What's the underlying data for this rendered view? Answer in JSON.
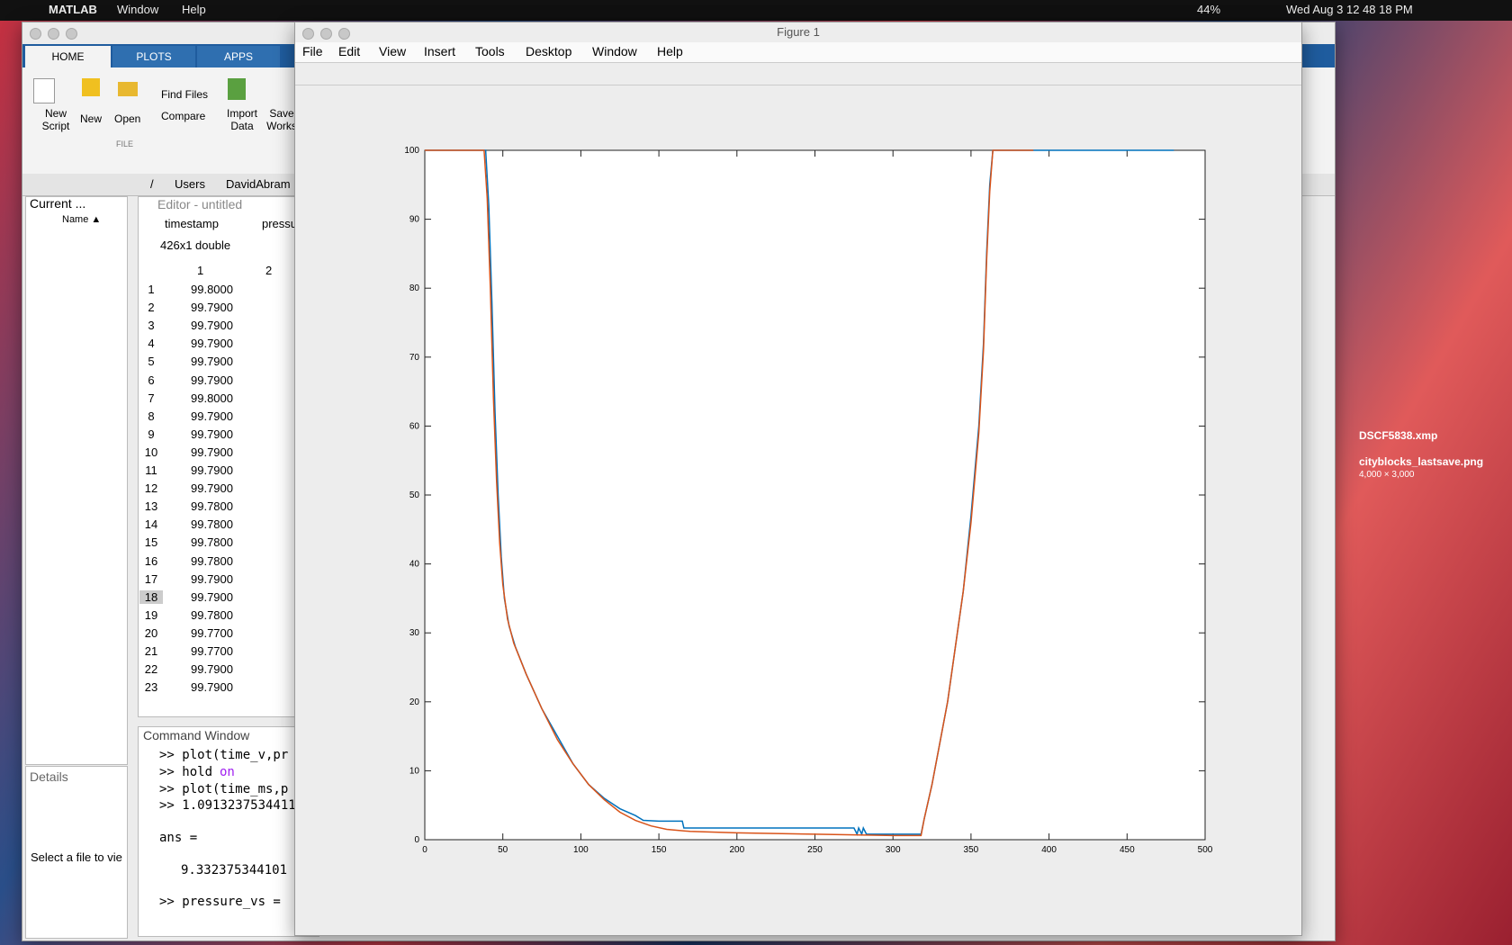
{
  "menubar": {
    "app": "MATLAB",
    "menus": [
      "Window",
      "Help"
    ],
    "battery": "44%",
    "clock": "Wed Aug 3  12 48 18 PM"
  },
  "matlab": {
    "tabs": [
      "HOME",
      "PLOTS",
      "APPS"
    ],
    "buttons": {
      "new_script": "New Script",
      "new": "New",
      "open": "Open",
      "find_files": "Find Files",
      "compare": "Compare",
      "import_data": "Import Data",
      "save_workspace": "Save Works"
    },
    "section": "FILE",
    "path": [
      "/",
      "Users",
      "DavidAbram"
    ],
    "current_folder": {
      "title": "Current ...",
      "column": "Name ▲"
    },
    "details": {
      "title": "Details",
      "message": "Select a file to vie"
    },
    "editor": {
      "title": "Editor - untitled",
      "tabs": [
        "timestamp",
        "pressu"
      ]
    },
    "variable": {
      "size": "426x1 double",
      "columns": [
        "1",
        "2"
      ],
      "rows": [
        [
          "1",
          "99.8000"
        ],
        [
          "2",
          "99.7900"
        ],
        [
          "3",
          "99.7900"
        ],
        [
          "4",
          "99.7900"
        ],
        [
          "5",
          "99.7900"
        ],
        [
          "6",
          "99.7900"
        ],
        [
          "7",
          "99.8000"
        ],
        [
          "8",
          "99.7900"
        ],
        [
          "9",
          "99.7900"
        ],
        [
          "10",
          "99.7900"
        ],
        [
          "11",
          "99.7900"
        ],
        [
          "12",
          "99.7900"
        ],
        [
          "13",
          "99.7800"
        ],
        [
          "14",
          "99.7800"
        ],
        [
          "15",
          "99.7800"
        ],
        [
          "16",
          "99.7800"
        ],
        [
          "17",
          "99.7900"
        ],
        [
          "18",
          "99.7900"
        ],
        [
          "19",
          "99.7800"
        ],
        [
          "20",
          "99.7700"
        ],
        [
          "21",
          "99.7700"
        ],
        [
          "22",
          "99.7900"
        ],
        [
          "23",
          "99.7900"
        ]
      ]
    },
    "command_window": {
      "title": "Command Window",
      "lines": [
        ">> plot(time_v,pr",
        ">> hold",
        ">> plot(time_ms,p",
        ">> 1.0913237534411",
        "ans =",
        "9.332375344101",
        ">> pressure_vs ="
      ],
      "keyword": "on"
    }
  },
  "figure": {
    "title": "Figure 1",
    "menus": [
      "File",
      "Edit",
      "View",
      "Insert",
      "Tools",
      "Desktop",
      "Window",
      "Help"
    ]
  },
  "chart_data": {
    "type": "line",
    "xlim": [
      0,
      500
    ],
    "ylim": [
      0,
      100
    ],
    "xticks": [
      0,
      50,
      100,
      150,
      200,
      250,
      300,
      350,
      400,
      450,
      500
    ],
    "yticks": [
      0,
      10,
      20,
      30,
      40,
      50,
      60,
      70,
      80,
      90,
      100
    ],
    "series": [
      {
        "color": "#0072bd",
        "x": [
          0,
          39,
          41,
          43,
          45,
          47,
          49,
          51,
          54,
          58,
          65,
          75,
          85,
          95,
          105,
          115,
          125,
          135,
          140,
          150,
          165,
          166,
          275,
          277,
          278,
          280,
          281,
          283,
          284,
          318,
          320,
          325,
          330,
          335,
          340,
          345,
          350,
          355,
          358,
          360,
          362,
          364,
          480
        ],
        "values": [
          100,
          100,
          92,
          78,
          62,
          50,
          41,
          35,
          31,
          28,
          24,
          19,
          15,
          11,
          8,
          6,
          4.5,
          3.5,
          2.8,
          2.7,
          2.7,
          1.7,
          1.7,
          0.8,
          1.7,
          0.8,
          1.7,
          0.8,
          0.8,
          0.8,
          3,
          8,
          14,
          20,
          28,
          36,
          47,
          60,
          72,
          85,
          95,
          100,
          100
        ]
      },
      {
        "color": "#d95319",
        "x": [
          0,
          38,
          40,
          42,
          44,
          46,
          48,
          50,
          53,
          57,
          65,
          75,
          85,
          95,
          105,
          115,
          125,
          135,
          145,
          155,
          170,
          200,
          250,
          300,
          318,
          320,
          325,
          330,
          335,
          340,
          345,
          350,
          355,
          358,
          360,
          362,
          364,
          390
        ],
        "values": [
          100,
          100,
          93,
          80,
          64,
          52,
          43,
          37,
          32,
          28.5,
          24,
          19,
          14.5,
          11,
          8,
          5.8,
          4,
          2.8,
          2,
          1.5,
          1.2,
          1,
          0.8,
          0.6,
          0.6,
          3,
          8,
          14,
          20,
          28,
          36,
          46,
          59,
          71,
          84,
          94,
          100,
          100
        ]
      }
    ]
  },
  "desktop": {
    "files": [
      "DSCF5838.xmp",
      "cityblocks_lastsave.png"
    ],
    "dimensions": "4,000 × 3,000"
  }
}
